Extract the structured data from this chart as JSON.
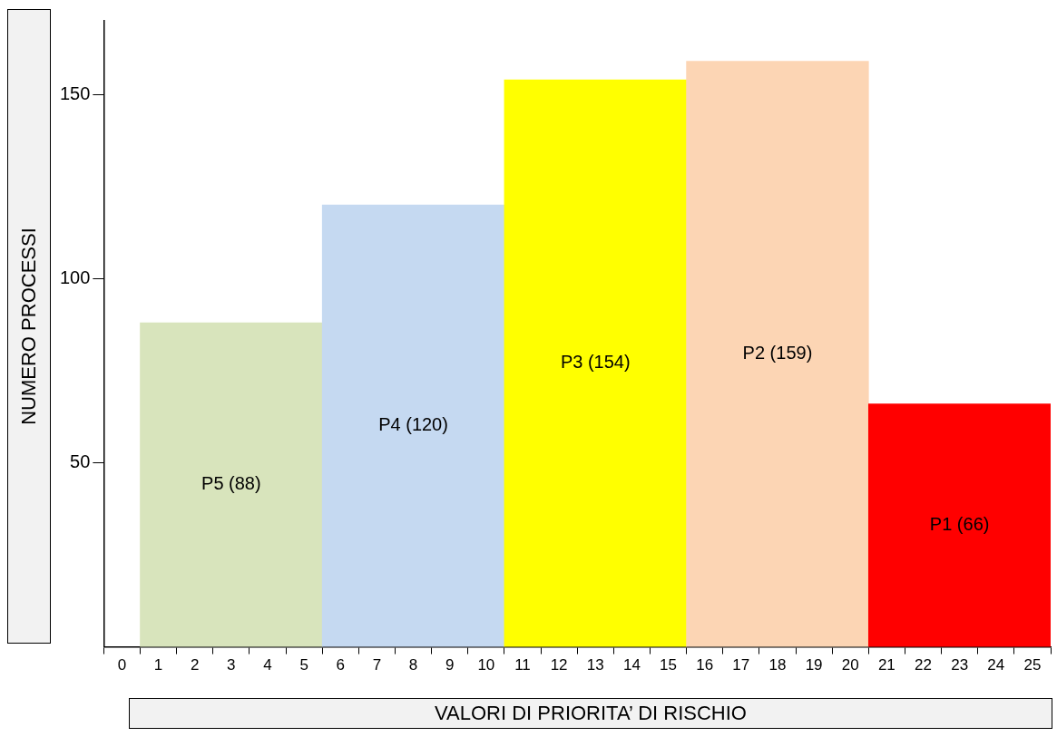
{
  "chart_data": {
    "type": "histogram",
    "xlabel": "VALORI DI PRIORITA’ DI RISCHIO",
    "ylabel": "NUMERO PROCESSI",
    "bins": [
      0.5,
      5.5,
      10.5,
      15.5,
      20.5,
      25.5
    ],
    "values": [
      88,
      120,
      154,
      159,
      66
    ],
    "colors": [
      "#d8e4bc",
      "#c5d9f1",
      "#ffff00",
      "#fcd5b4",
      "#ff0000"
    ],
    "value_labels": [
      "P5 (88)",
      "P4 (120)",
      "P3 (154)",
      "P2 (159)",
      "P1 (66)"
    ],
    "xlim": [
      -0.5,
      25.5
    ],
    "xticks": [
      0,
      1,
      2,
      3,
      4,
      5,
      6,
      7,
      8,
      9,
      10,
      11,
      12,
      13,
      14,
      15,
      16,
      17,
      18,
      19,
      20,
      21,
      22,
      23,
      24,
      25
    ],
    "ylim": [
      0,
      170
    ],
    "yticks": [
      50,
      100,
      150
    ],
    "grid": false,
    "legend": false
  }
}
